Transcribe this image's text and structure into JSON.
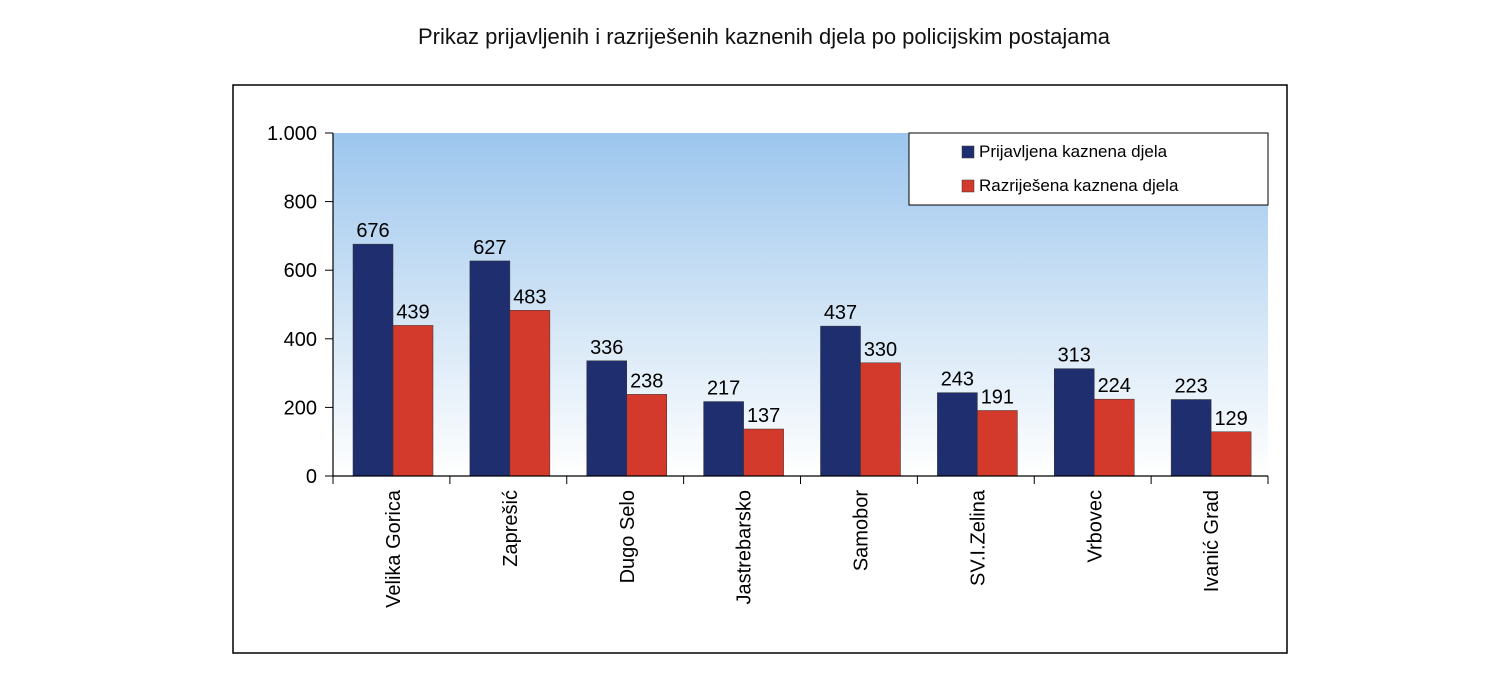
{
  "chart_data": {
    "type": "bar",
    "title": "Prikaz prijavljenih i razriješenih kaznenih djela po policijskim postajama",
    "categories": [
      "Velika Gorica",
      "Zaprešić",
      "Dugo Selo",
      "Jastrebarsko",
      "Samobor",
      "SV.I.Zelina",
      "Vrbovec",
      "Ivanić Grad"
    ],
    "series": [
      {
        "name": "Prijavljena kaznena djela",
        "color": "#1f2e6e",
        "values": [
          676,
          627,
          336,
          217,
          437,
          243,
          313,
          223
        ]
      },
      {
        "name": "Razriješena kaznena djela",
        "color": "#d33a2c",
        "values": [
          439,
          483,
          238,
          137,
          330,
          191,
          224,
          129
        ]
      }
    ],
    "ylim": [
      0,
      1000
    ],
    "yticks": [
      0,
      200,
      400,
      600,
      800,
      1000
    ],
    "ytick_labels": [
      "0",
      "200",
      "400",
      "600",
      "800",
      "1.000"
    ],
    "legend_position": "top-right",
    "grid": false,
    "background": "sky-gradient"
  }
}
